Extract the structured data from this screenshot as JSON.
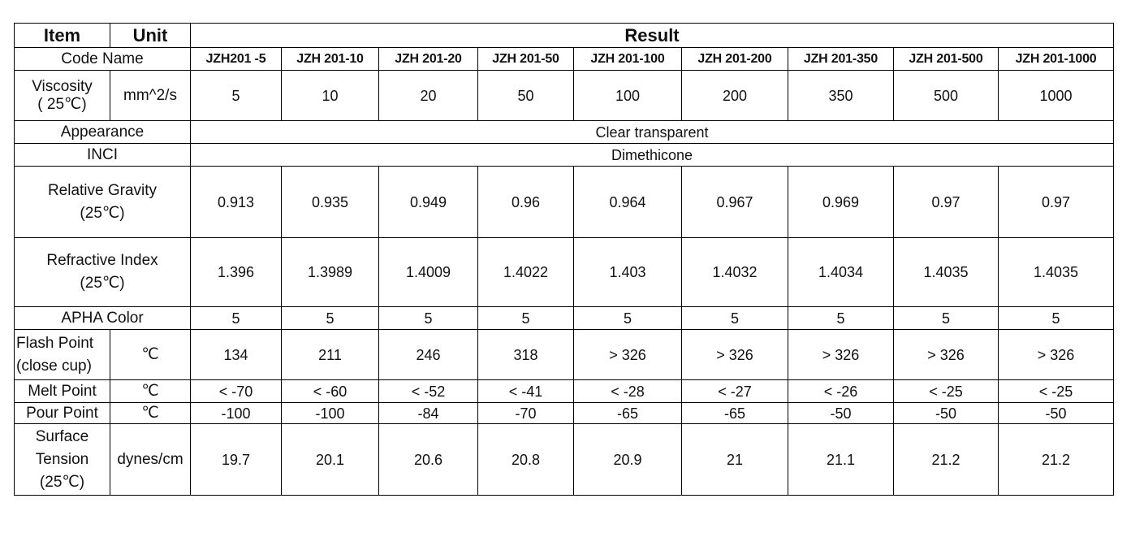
{
  "header": {
    "item": "Item",
    "unit": "Unit",
    "result": "Result"
  },
  "code_name": {
    "label": "Code Name",
    "values": [
      "JZH201 -5",
      "JZH 201-10",
      "JZH 201-20",
      "JZH 201-50",
      "JZH 201-100",
      "JZH 201-200",
      "JZH 201-350",
      "JZH 201-500",
      "JZH 201-1000"
    ]
  },
  "viscosity": {
    "label_line1": "Viscosity",
    "label_line2": "( 25℃)",
    "unit": "mm^2/s",
    "values": [
      "5",
      "10",
      "20",
      "50",
      "100",
      "200",
      "350",
      "500",
      "1000"
    ]
  },
  "appearance": {
    "label": "Appearance",
    "value": "Clear transparent"
  },
  "inci": {
    "label": "INCI",
    "value": "Dimethicone"
  },
  "relative_gravity": {
    "label_line1": "Relative Gravity",
    "label_line2": "(25℃)",
    "values": [
      "0.913",
      "0.935",
      "0.949",
      "0.96",
      "0.964",
      "0.967",
      "0.969",
      "0.97",
      "0.97"
    ]
  },
  "refractive_index": {
    "label_line1": "Refractive Index",
    "label_line2": "(25℃)",
    "values": [
      "1.396",
      "1.3989",
      "1.4009",
      "1.4022",
      "1.403",
      "1.4032",
      "1.4034",
      "1.4035",
      "1.4035"
    ]
  },
  "apha_color": {
    "label": "APHA Color",
    "values": [
      "5",
      "5",
      "5",
      "5",
      "5",
      "5",
      "5",
      "5",
      "5"
    ]
  },
  "flash_point": {
    "label_line1": "Flash Point",
    "label_line2": "(close cup)",
    "unit": "℃",
    "values": [
      "134",
      "211",
      "246",
      "318",
      "> 326",
      "> 326",
      "> 326",
      "> 326",
      "> 326"
    ]
  },
  "melt_point": {
    "label": "Melt Point",
    "unit": "℃",
    "values": [
      "< -70",
      "< -60",
      "< -52",
      "< -41",
      "< -28",
      "< -27",
      "< -26",
      "< -25",
      "< -25"
    ]
  },
  "pour_point": {
    "label": "Pour Point",
    "unit": "℃",
    "values": [
      "-100",
      "-100",
      "-84",
      "-70",
      "-65",
      "-65",
      "-50",
      "-50",
      "-50"
    ]
  },
  "surface_tension": {
    "label_line1": "Surface",
    "label_line2": "Tension",
    "label_line3": "(25℃)",
    "unit": "dynes/cm",
    "values": [
      "19.7",
      "20.1",
      "20.6",
      "20.8",
      "20.9",
      "21",
      "21.1",
      "21.2",
      "21.2"
    ]
  }
}
